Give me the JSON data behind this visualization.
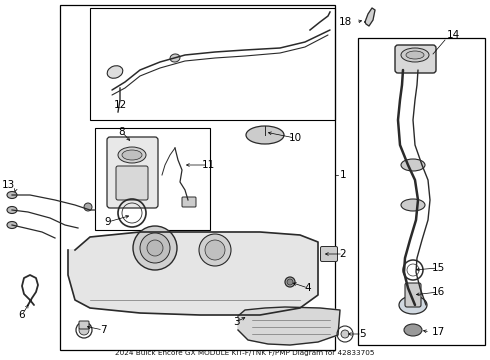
{
  "title": "2024 Buick Encore GX MODULE KIT-F/TNK F/PMP Diagram for 42833705",
  "bg_color": "#ffffff",
  "line_color": "#2a2a2a",
  "fig_width": 4.9,
  "fig_height": 3.6,
  "dpi": 100,
  "font_size": 7.5
}
